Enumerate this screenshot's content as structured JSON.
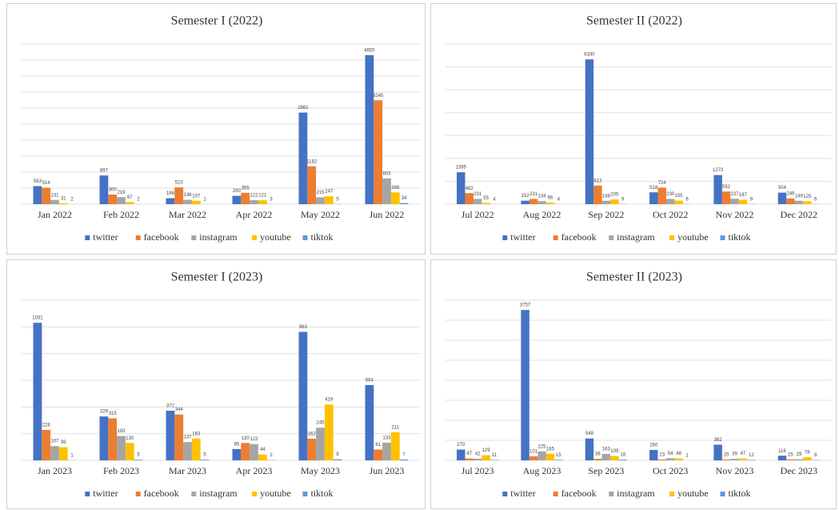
{
  "chart_data": [
    {
      "type": "bar",
      "title": "Semester I (2022)",
      "categories": [
        "Jan 2022",
        "Feb 2022",
        "Mar 2022",
        "Apr 2022",
        "May 2022",
        "Jun 2022"
      ],
      "series": [
        {
          "name": "twitter",
          "color": "#4472c4",
          "values": [
            563,
            897,
            186,
            260,
            2861,
            4655
          ]
        },
        {
          "name": "facebook",
          "color": "#ed7d31",
          "values": [
            514,
            300,
            523,
            355,
            1182,
            3245
          ]
        },
        {
          "name": "instagram",
          "color": "#a5a5a5",
          "values": [
            131,
            219,
            136,
            122,
            215,
            803
          ]
        },
        {
          "name": "youtube",
          "color": "#ffc000",
          "values": [
            31,
            67,
            107,
            121,
            247,
            368
          ]
        },
        {
          "name": "tiktok",
          "color": "#5b9bd5",
          "values": [
            2,
            2,
            1,
            3,
            5,
            34
          ]
        }
      ],
      "ylim": [
        0,
        5000
      ],
      "yticks": [
        0,
        500,
        1000,
        1500,
        2000,
        2500,
        3000,
        3500,
        4000,
        4500,
        5000
      ],
      "grid": true,
      "legend": "bottom"
    },
    {
      "type": "bar",
      "title": "Semester II (2022)",
      "categories": [
        "Jul 2022",
        "Aug 2022",
        "Sep 2022",
        "Oct 2022",
        "Nov 2022",
        "Dec 2022"
      ],
      "series": [
        {
          "name": "twitter",
          "color": "#4472c4",
          "values": [
            1395,
            152,
            6330,
            518,
            1273,
            504
          ]
        },
        {
          "name": "facebook",
          "color": "#ed7d31",
          "values": [
            482,
            231,
            813,
            724,
            552,
            249
          ]
        },
        {
          "name": "instagram",
          "color": "#a5a5a5",
          "values": [
            231,
            134,
            148,
            230,
            237,
            149
          ]
        },
        {
          "name": "youtube",
          "color": "#ffc000",
          "values": [
            55,
            66,
            205,
            155,
            187,
            125
          ]
        },
        {
          "name": "tiktok",
          "color": "#5b9bd5",
          "values": [
            4,
            4,
            9,
            6,
            9,
            6
          ]
        }
      ],
      "ylim": [
        0,
        7000
      ],
      "yticks": [
        0,
        1000,
        2000,
        3000,
        4000,
        5000,
        6000,
        7000
      ],
      "grid": true,
      "legend": "bottom"
    },
    {
      "type": "bar",
      "title": "Semester I (2023)",
      "categories": [
        "Jan 2023",
        "Feb 2023",
        "Mar 2023",
        "Apr 2023",
        "May 2023",
        "Jun 2023"
      ],
      "series": [
        {
          "name": "twitter",
          "color": "#4472c4",
          "values": [
            1031,
            329,
            372,
            85,
            963,
            564
          ]
        },
        {
          "name": "facebook",
          "color": "#ed7d31",
          "values": [
            228,
            315,
            344,
            130,
            162,
            81
          ]
        },
        {
          "name": "instagram",
          "color": "#a5a5a5",
          "values": [
            107,
            183,
            137,
            122,
            245,
            133
          ]
        },
        {
          "name": "youtube",
          "color": "#ffc000",
          "values": [
            99,
            130,
            163,
            44,
            419,
            211
          ]
        },
        {
          "name": "tiktok",
          "color": "#5b9bd5",
          "values": [
            1,
            5,
            5,
            2,
            8,
            7
          ]
        }
      ],
      "ylim": [
        0,
        1200
      ],
      "yticks": [
        0,
        200,
        400,
        600,
        800,
        1000,
        1200
      ],
      "grid": true,
      "legend": "bottom"
    },
    {
      "type": "bar",
      "title": "Semester II (2023)",
      "categories": [
        "Jul 2023",
        "Aug 2023",
        "Sep 2023",
        "Oct 2023",
        "Nov 2023",
        "Dec 2023"
      ],
      "series": [
        {
          "name": "twitter",
          "color": "#4472c4",
          "values": [
            270,
            3757,
            548,
            260,
            392,
            116
          ]
        },
        {
          "name": "facebook",
          "color": "#ed7d31",
          "values": [
            47,
            101,
            38,
            23,
            20,
            25
          ]
        },
        {
          "name": "instagram",
          "color": "#a5a5a5",
          "values": [
            42,
            225,
            163,
            54,
            39,
            29
          ]
        },
        {
          "name": "youtube",
          "color": "#ffc000",
          "values": [
            129,
            165,
            109,
            48,
            47,
            78
          ]
        },
        {
          "name": "tiktok",
          "color": "#5b9bd5",
          "values": [
            11,
            15,
            18,
            1,
            12,
            8
          ]
        }
      ],
      "ylim": [
        0,
        4000
      ],
      "yticks": [
        0,
        500,
        1000,
        1500,
        2000,
        2500,
        3000,
        3500,
        4000
      ],
      "grid": true,
      "legend": "bottom"
    }
  ]
}
